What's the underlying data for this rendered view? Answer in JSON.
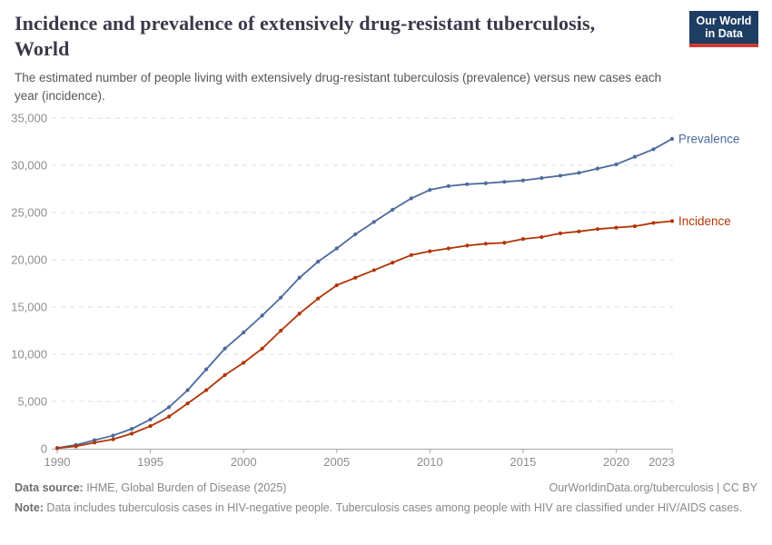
{
  "header": {
    "title": "Incidence and prevalence of extensively drug-resistant tuberculosis, World",
    "subtitle": "The estimated number of people living with extensively drug-resistant tuberculosis (prevalence) versus new cases each year (incidence)."
  },
  "logo": {
    "line1": "Our World",
    "line2": "in Data"
  },
  "chart_data": {
    "type": "line",
    "x": [
      1990,
      1991,
      1992,
      1993,
      1994,
      1995,
      1996,
      1997,
      1998,
      1999,
      2000,
      2001,
      2002,
      2003,
      2004,
      2005,
      2006,
      2007,
      2008,
      2009,
      2010,
      2011,
      2012,
      2013,
      2014,
      2015,
      2016,
      2017,
      2018,
      2019,
      2020,
      2021,
      2022,
      2023
    ],
    "series": [
      {
        "name": "Prevalence",
        "color": "#4C6A9C",
        "values": [
          80,
          400,
          900,
          1400,
          2100,
          3100,
          4400,
          6200,
          8400,
          10600,
          12300,
          14100,
          16000,
          18100,
          19800,
          21200,
          22700,
          24000,
          25300,
          26500,
          27400,
          27800,
          28000,
          28100,
          28250,
          28400,
          28650,
          28900,
          29200,
          29650,
          30100,
          30900,
          31700,
          32800
        ]
      },
      {
        "name": "Incidence",
        "color": "#B13507",
        "values": [
          60,
          250,
          650,
          1000,
          1600,
          2400,
          3400,
          4800,
          6200,
          7800,
          9100,
          10600,
          12500,
          14300,
          15900,
          17300,
          18100,
          18900,
          19700,
          20500,
          20900,
          21200,
          21500,
          21700,
          21800,
          22200,
          22400,
          22800,
          23000,
          23250,
          23400,
          23550,
          23900,
          24100
        ]
      }
    ],
    "xlim": [
      1990,
      2023
    ],
    "ylim": [
      0,
      35000
    ],
    "yticks": [
      0,
      5000,
      10000,
      15000,
      20000,
      25000,
      30000,
      35000
    ],
    "ytick_labels": [
      "0",
      "5,000",
      "10,000",
      "15,000",
      "20,000",
      "25,000",
      "30,000",
      "35,000"
    ],
    "xticks": [
      1990,
      1995,
      2000,
      2005,
      2010,
      2015,
      2020,
      2023
    ],
    "grid": "horizontal-dashed",
    "legend_position": "right-end-labels"
  },
  "footer": {
    "datasource_label": "Data source:",
    "datasource": " IHME, Global Burden of Disease (2025)",
    "rights": "OurWorldinData.org/tuberculosis | CC BY",
    "note_label": "Note:",
    "note": " Data includes tuberculosis cases in HIV-negative people. Tuberculosis cases among people with HIV are classified under HIV/AIDS cases."
  },
  "colors": {
    "axis": "#a8a8a8",
    "grid": "#dcdcdc",
    "tick_text": "#8e8e8e",
    "logo_bg": "#1d3d63",
    "logo_bar": "#cf3b32"
  }
}
